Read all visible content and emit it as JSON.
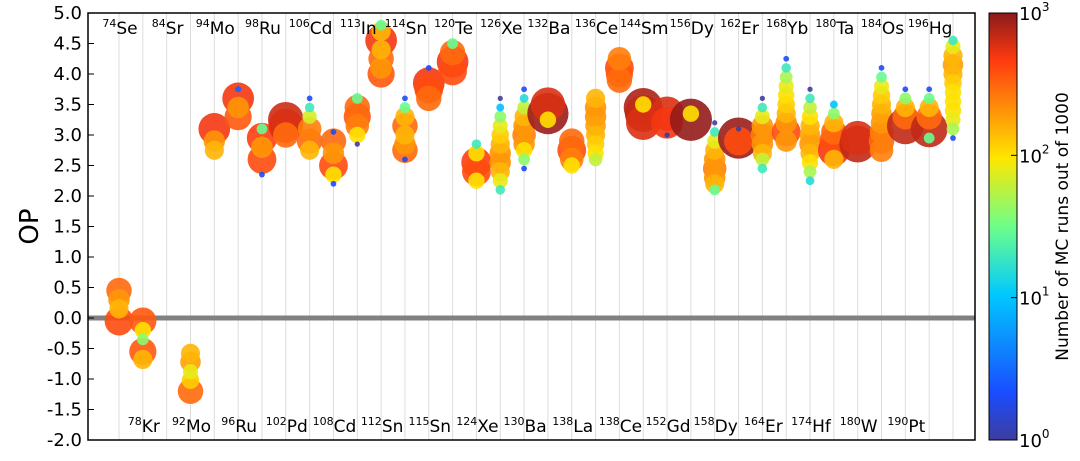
{
  "chart_data": {
    "type": "scatter",
    "title": "",
    "xlabel": "",
    "ylabel": "OP",
    "ylim": [
      -2.0,
      5.0
    ],
    "yticks": [
      "5.0",
      "4.5",
      "4.0",
      "3.5",
      "3.0",
      "2.5",
      "2.0",
      "1.5",
      "1.0",
      "0.5",
      "0.0",
      "-0.5",
      "-1.0",
      "-1.5",
      "-2.0"
    ],
    "grid": "vertical",
    "reference_line": 0.0,
    "colorbar": {
      "label": "Number of MC runs out of 1000",
      "scale": "log",
      "range": [
        1,
        1000
      ],
      "ticks": [
        {
          "mantissa": "10",
          "exp": "0",
          "value": 1
        },
        {
          "mantissa": "10",
          "exp": "1",
          "value": 10
        },
        {
          "mantissa": "10",
          "exp": "2",
          "value": 100
        },
        {
          "mantissa": "10",
          "exp": "3",
          "value": 1000
        }
      ]
    },
    "categories": [
      {
        "label": "Se",
        "mass": "74",
        "pos": "top",
        "points": [
          {
            "y": 0.45,
            "n": 300
          },
          {
            "y": 0.3,
            "n": 200
          },
          {
            "y": 0.15,
            "n": 150
          },
          {
            "y": -0.05,
            "n": 400
          }
        ]
      },
      {
        "label": "Kr",
        "mass": "78",
        "pos": "bottom",
        "points": [
          {
            "y": -0.05,
            "n": 350
          },
          {
            "y": -0.2,
            "n": 100
          },
          {
            "y": -0.35,
            "n": 40
          },
          {
            "y": -0.55,
            "n": 350
          },
          {
            "y": -0.68,
            "n": 150
          }
        ]
      },
      {
        "label": "Sr",
        "mass": "84",
        "pos": "top",
        "points": []
      },
      {
        "label": "Mo",
        "mass": "92",
        "pos": "bottom",
        "points": [
          {
            "y": -0.58,
            "n": 150
          },
          {
            "y": -0.72,
            "n": 180
          },
          {
            "y": -0.88,
            "n": 80
          },
          {
            "y": -1.02,
            "n": 120
          },
          {
            "y": -1.2,
            "n": 300
          }
        ]
      },
      {
        "label": "Mo",
        "mass": "94",
        "pos": "top",
        "points": [
          {
            "y": 3.1,
            "n": 500
          },
          {
            "y": 2.9,
            "n": 200
          },
          {
            "y": 2.75,
            "n": 150
          }
        ]
      },
      {
        "label": "Ru",
        "mass": "96",
        "pos": "bottom",
        "points": [
          {
            "y": 3.75,
            "n": 3
          },
          {
            "y": 3.6,
            "n": 500
          },
          {
            "y": 3.45,
            "n": 200
          },
          {
            "y": 3.3,
            "n": 350
          }
        ]
      },
      {
        "label": "Ru",
        "mass": "98",
        "pos": "top",
        "points": [
          {
            "y": 3.1,
            "n": 30
          },
          {
            "y": 2.95,
            "n": 450
          },
          {
            "y": 2.8,
            "n": 200
          },
          {
            "y": 2.6,
            "n": 400
          },
          {
            "y": 2.35,
            "n": 2
          }
        ]
      },
      {
        "label": "Pd",
        "mass": "102",
        "pos": "bottom",
        "points": [
          {
            "y": 3.25,
            "n": 650
          },
          {
            "y": 3.15,
            "n": 600
          },
          {
            "y": 3.0,
            "n": 300
          }
        ]
      },
      {
        "label": "Cd",
        "mass": "106",
        "pos": "top",
        "points": [
          {
            "y": 3.6,
            "n": 2
          },
          {
            "y": 3.45,
            "n": 20
          },
          {
            "y": 3.3,
            "n": 70
          },
          {
            "y": 3.1,
            "n": 250
          },
          {
            "y": 2.9,
            "n": 300
          },
          {
            "y": 2.75,
            "n": 150
          }
        ]
      },
      {
        "label": "Cd",
        "mass": "108",
        "pos": "bottom",
        "points": [
          {
            "y": 3.05,
            "n": 2
          },
          {
            "y": 2.9,
            "n": 300
          },
          {
            "y": 2.7,
            "n": 200
          },
          {
            "y": 2.5,
            "n": 400
          },
          {
            "y": 2.35,
            "n": 100
          },
          {
            "y": 2.2,
            "n": 2
          }
        ]
      },
      {
        "label": "In",
        "mass": "113",
        "pos": "top",
        "points": [
          {
            "y": 3.6,
            "n": 30
          },
          {
            "y": 3.45,
            "n": 300
          },
          {
            "y": 3.3,
            "n": 350
          },
          {
            "y": 3.15,
            "n": 250
          },
          {
            "y": 3.0,
            "n": 100
          },
          {
            "y": 2.85,
            "n": 1
          }
        ]
      },
      {
        "label": "Sn",
        "mass": "112",
        "pos": "bottom",
        "points": [
          {
            "y": 4.8,
            "n": 30
          },
          {
            "y": 4.7,
            "n": 150
          },
          {
            "y": 4.55,
            "n": 500
          },
          {
            "y": 4.4,
            "n": 150
          },
          {
            "y": 4.25,
            "n": 300
          },
          {
            "y": 4.1,
            "n": 200
          },
          {
            "y": 4.0,
            "n": 350
          }
        ]
      },
      {
        "label": "Sn",
        "mass": "114",
        "pos": "top",
        "points": [
          {
            "y": 3.6,
            "n": 2
          },
          {
            "y": 3.45,
            "n": 30
          },
          {
            "y": 3.3,
            "n": 150
          },
          {
            "y": 3.15,
            "n": 300
          },
          {
            "y": 3.0,
            "n": 150
          },
          {
            "y": 2.85,
            "n": 200
          },
          {
            "y": 2.75,
            "n": 300
          },
          {
            "y": 2.6,
            "n": 2
          }
        ]
      },
      {
        "label": "Sn",
        "mass": "115",
        "pos": "bottom",
        "points": [
          {
            "y": 4.1,
            "n": 2
          },
          {
            "y": 3.85,
            "n": 500
          },
          {
            "y": 3.75,
            "n": 400
          },
          {
            "y": 3.6,
            "n": 300
          }
        ]
      },
      {
        "label": "Te",
        "mass": "120",
        "pos": "top",
        "points": [
          {
            "y": 4.5,
            "n": 30
          },
          {
            "y": 4.35,
            "n": 300
          },
          {
            "y": 4.2,
            "n": 500
          },
          {
            "y": 4.05,
            "n": 400
          }
        ]
      },
      {
        "label": "Xe",
        "mass": "124",
        "pos": "bottom",
        "points": [
          {
            "y": 2.85,
            "n": 20
          },
          {
            "y": 2.7,
            "n": 100
          },
          {
            "y": 2.55,
            "n": 450
          },
          {
            "y": 2.4,
            "n": 400
          },
          {
            "y": 2.25,
            "n": 100
          }
        ]
      },
      {
        "label": "Xe",
        "mass": "126",
        "pos": "top",
        "points": [
          {
            "y": 3.6,
            "n": 1
          },
          {
            "y": 3.45,
            "n": 10
          },
          {
            "y": 3.3,
            "n": 40
          },
          {
            "y": 3.15,
            "n": 80
          },
          {
            "y": 3.0,
            "n": 120
          },
          {
            "y": 2.85,
            "n": 150
          },
          {
            "y": 2.7,
            "n": 200
          },
          {
            "y": 2.55,
            "n": 200
          },
          {
            "y": 2.4,
            "n": 150
          },
          {
            "y": 2.25,
            "n": 80
          },
          {
            "y": 2.1,
            "n": 20
          }
        ]
      },
      {
        "label": "Ba",
        "mass": "130",
        "pos": "bottom",
        "points": [
          {
            "y": 3.75,
            "n": 2
          },
          {
            "y": 3.6,
            "n": 15
          },
          {
            "y": 3.45,
            "n": 60
          },
          {
            "y": 3.3,
            "n": 150
          },
          {
            "y": 3.15,
            "n": 200
          },
          {
            "y": 3.0,
            "n": 250
          },
          {
            "y": 2.85,
            "n": 200
          },
          {
            "y": 2.75,
            "n": 100
          },
          {
            "y": 2.6,
            "n": 40
          },
          {
            "y": 2.45,
            "n": 2
          }
        ]
      },
      {
        "label": "Ba",
        "mass": "132",
        "pos": "top",
        "points": [
          {
            "y": 3.5,
            "n": 600
          },
          {
            "y": 3.35,
            "n": 900
          },
          {
            "y": 3.25,
            "n": 100
          }
        ]
      },
      {
        "label": "La",
        "mass": "138",
        "pos": "bottom",
        "points": [
          {
            "y": 2.9,
            "n": 300
          },
          {
            "y": 2.75,
            "n": 400
          },
          {
            "y": 2.6,
            "n": 250
          },
          {
            "y": 2.5,
            "n": 100
          }
        ]
      },
      {
        "label": "Ce",
        "mass": "136",
        "pos": "top",
        "points": [
          {
            "y": 3.6,
            "n": 150
          },
          {
            "y": 3.45,
            "n": 200
          },
          {
            "y": 3.3,
            "n": 200
          },
          {
            "y": 3.15,
            "n": 180
          },
          {
            "y": 3.0,
            "n": 150
          },
          {
            "y": 2.85,
            "n": 120
          },
          {
            "y": 2.7,
            "n": 100
          },
          {
            "y": 2.6,
            "n": 60
          }
        ]
      },
      {
        "label": "Ce",
        "mass": "138",
        "pos": "bottom",
        "points": [
          {
            "y": 4.25,
            "n": 250
          },
          {
            "y": 4.1,
            "n": 400
          },
          {
            "y": 4.0,
            "n": 350
          },
          {
            "y": 3.9,
            "n": 300
          }
        ]
      },
      {
        "label": "Sm",
        "mass": "144",
        "pos": "top",
        "points": [
          {
            "y": 3.45,
            "n": 800
          },
          {
            "y": 3.35,
            "n": 700
          },
          {
            "y": 3.2,
            "n": 600
          },
          {
            "y": 3.5,
            "n": 100
          }
        ]
      },
      {
        "label": "Gd",
        "mass": "152",
        "pos": "bottom",
        "points": [
          {
            "y": 3.35,
            "n": 600
          },
          {
            "y": 3.2,
            "n": 500
          },
          {
            "y": 3.0,
            "n": 1
          }
        ]
      },
      {
        "label": "Dy",
        "mass": "156",
        "pos": "top",
        "points": [
          {
            "y": 3.25,
            "n": 950
          },
          {
            "y": 3.35,
            "n": 100
          }
        ]
      },
      {
        "label": "Dy",
        "mass": "158",
        "pos": "bottom",
        "points": [
          {
            "y": 3.2,
            "n": 1
          },
          {
            "y": 3.05,
            "n": 20
          },
          {
            "y": 2.9,
            "n": 80
          },
          {
            "y": 2.75,
            "n": 150
          },
          {
            "y": 2.6,
            "n": 200
          },
          {
            "y": 2.45,
            "n": 250
          },
          {
            "y": 2.3,
            "n": 200
          },
          {
            "y": 2.2,
            "n": 150
          },
          {
            "y": 2.1,
            "n": 30
          }
        ]
      },
      {
        "label": "Er",
        "mass": "162",
        "pos": "top",
        "points": [
          {
            "y": 3.1,
            "n": 1
          },
          {
            "y": 2.95,
            "n": 900
          },
          {
            "y": 2.9,
            "n": 400
          }
        ]
      },
      {
        "label": "Er",
        "mass": "164",
        "pos": "bottom",
        "points": [
          {
            "y": 3.6,
            "n": 1
          },
          {
            "y": 3.45,
            "n": 20
          },
          {
            "y": 3.3,
            "n": 80
          },
          {
            "y": 3.15,
            "n": 200
          },
          {
            "y": 3.0,
            "n": 250
          },
          {
            "y": 2.85,
            "n": 200
          },
          {
            "y": 2.7,
            "n": 150
          },
          {
            "y": 2.6,
            "n": 60
          },
          {
            "y": 2.45,
            "n": 20
          }
        ]
      },
      {
        "label": "Yb",
        "mass": "168",
        "pos": "top",
        "points": [
          {
            "y": 4.25,
            "n": 2
          },
          {
            "y": 4.1,
            "n": 20
          },
          {
            "y": 3.95,
            "n": 50
          },
          {
            "y": 3.8,
            "n": 80
          },
          {
            "y": 3.65,
            "n": 100
          },
          {
            "y": 3.5,
            "n": 120
          },
          {
            "y": 3.35,
            "n": 150
          },
          {
            "y": 3.2,
            "n": 200
          },
          {
            "y": 3.05,
            "n": 400
          },
          {
            "y": 2.9,
            "n": 200
          }
        ]
      },
      {
        "label": "Hf",
        "mass": "174",
        "pos": "bottom",
        "points": [
          {
            "y": 3.75,
            "n": 1
          },
          {
            "y": 3.6,
            "n": 20
          },
          {
            "y": 3.45,
            "n": 60
          },
          {
            "y": 3.3,
            "n": 100
          },
          {
            "y": 3.15,
            "n": 150
          },
          {
            "y": 3.0,
            "n": 180
          },
          {
            "y": 2.85,
            "n": 200
          },
          {
            "y": 2.7,
            "n": 150
          },
          {
            "y": 2.55,
            "n": 100
          },
          {
            "y": 2.4,
            "n": 50
          },
          {
            "y": 2.25,
            "n": 15
          }
        ]
      },
      {
        "label": "Ta",
        "mass": "180",
        "pos": "top",
        "points": [
          {
            "y": 3.5,
            "n": 10
          },
          {
            "y": 3.35,
            "n": 40
          },
          {
            "y": 3.2,
            "n": 150
          },
          {
            "y": 3.05,
            "n": 300
          },
          {
            "y": 2.9,
            "n": 400
          },
          {
            "y": 2.75,
            "n": 500
          },
          {
            "y": 2.6,
            "n": 150
          }
        ]
      },
      {
        "label": "W",
        "mass": "180",
        "pos": "bottom",
        "points": [
          {
            "y": 2.95,
            "n": 600
          },
          {
            "y": 2.85,
            "n": 700
          }
        ]
      },
      {
        "label": "Os",
        "mass": "184",
        "pos": "top",
        "points": [
          {
            "y": 4.1,
            "n": 2
          },
          {
            "y": 3.95,
            "n": 30
          },
          {
            "y": 3.8,
            "n": 80
          },
          {
            "y": 3.65,
            "n": 120
          },
          {
            "y": 3.5,
            "n": 150
          },
          {
            "y": 3.35,
            "n": 180
          },
          {
            "y": 3.2,
            "n": 200
          },
          {
            "y": 3.05,
            "n": 250
          },
          {
            "y": 2.9,
            "n": 300
          },
          {
            "y": 2.75,
            "n": 250
          }
        ]
      },
      {
        "label": "Pt",
        "mass": "190",
        "pos": "bottom",
        "points": [
          {
            "y": 3.75,
            "n": 2
          },
          {
            "y": 3.6,
            "n": 40
          },
          {
            "y": 3.45,
            "n": 150
          },
          {
            "y": 3.3,
            "n": 300
          },
          {
            "y": 3.15,
            "n": 700
          }
        ]
      },
      {
        "label": "Hg",
        "mass": "196",
        "pos": "top",
        "points": [
          {
            "y": 3.75,
            "n": 2
          },
          {
            "y": 3.6,
            "n": 30
          },
          {
            "y": 3.45,
            "n": 150
          },
          {
            "y": 3.3,
            "n": 300
          },
          {
            "y": 3.1,
            "n": 700
          },
          {
            "y": 2.95,
            "n": 30
          }
        ]
      },
      {
        "label": "",
        "mass": "",
        "pos": "none",
        "points": [
          {
            "y": 4.55,
            "n": 20
          },
          {
            "y": 4.45,
            "n": 80
          },
          {
            "y": 4.3,
            "n": 150
          },
          {
            "y": 4.15,
            "n": 180
          },
          {
            "y": 4.0,
            "n": 150
          },
          {
            "y": 3.85,
            "n": 120
          },
          {
            "y": 3.7,
            "n": 100
          },
          {
            "y": 3.55,
            "n": 100
          },
          {
            "y": 3.4,
            "n": 100
          },
          {
            "y": 3.25,
            "n": 80
          },
          {
            "y": 3.1,
            "n": 50
          },
          {
            "y": 2.95,
            "n": 2
          }
        ]
      }
    ]
  }
}
